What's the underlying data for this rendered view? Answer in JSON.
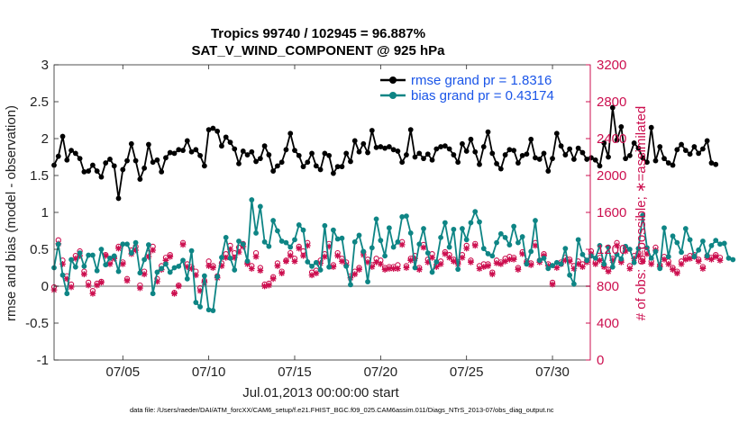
{
  "colors": {
    "rmse": "#000000",
    "bias": "#0e8585",
    "obs": "#cc0f4f",
    "zero_line": "#b4b4b4",
    "legend_text": "#1a55e8",
    "grid": "#e6e6e6"
  },
  "chart_data": {
    "type": "line",
    "title_line1": "Tropics 99740 / 102945 = 96.887%",
    "title_line2": "SAT_V_WIND_COMPONENT @ 925 hPa",
    "xlabel": "Jul.01,2013 00:00:00 start",
    "ylabel_left": "rmse and bias (model - observation)",
    "ylabel_right": "# of obs: o=possible; ∗=assimilated",
    "xlim": [
      1,
      32.2
    ],
    "ylim_left": [
      -1,
      3
    ],
    "ylim_right": [
      0,
      3200
    ],
    "x_ticks": [
      {
        "value": 5,
        "label": "07/05"
      },
      {
        "value": 10,
        "label": "07/10"
      },
      {
        "value": 15,
        "label": "07/15"
      },
      {
        "value": 20,
        "label": "07/20"
      },
      {
        "value": 25,
        "label": "07/25"
      },
      {
        "value": 30,
        "label": "07/30"
      }
    ],
    "left_ticks": [
      {
        "value": 3,
        "label": "3"
      },
      {
        "value": 2.5,
        "label": "2.5"
      },
      {
        "value": 2,
        "label": "2"
      },
      {
        "value": 1.5,
        "label": "1.5"
      },
      {
        "value": 1,
        "label": "1"
      },
      {
        "value": 0.5,
        "label": "0.5"
      },
      {
        "value": 0,
        "label": "0"
      },
      {
        "value": -0.5,
        "label": "-0.5"
      },
      {
        "value": -1,
        "label": "-1"
      }
    ],
    "right_ticks": [
      {
        "value": 3200,
        "label": "3200"
      },
      {
        "value": 2800,
        "label": "2800"
      },
      {
        "value": 2400,
        "label": "2400"
      },
      {
        "value": 2000,
        "label": "2000"
      },
      {
        "value": 1600,
        "label": "1600"
      },
      {
        "value": 1200,
        "label": "1200"
      },
      {
        "value": 800,
        "label": "800"
      },
      {
        "value": 400,
        "label": "400"
      },
      {
        "value": 0,
        "label": "0"
      }
    ],
    "legend": {
      "position": "top-right",
      "rmse_label": "rmse grand pr = 1.8316",
      "bias_label": "bias grand pr = 0.43174"
    },
    "x_start": 1.0,
    "x_step": 0.25,
    "series": [
      {
        "name": "rmse",
        "axis": "left",
        "values": [
          1.64,
          1.76,
          2.03,
          1.71,
          1.84,
          1.8,
          1.73,
          1.55,
          1.56,
          1.64,
          1.56,
          1.48,
          1.67,
          1.72,
          1.63,
          1.19,
          1.58,
          1.7,
          1.93,
          1.7,
          1.45,
          1.6,
          1.92,
          1.68,
          1.71,
          1.55,
          1.74,
          1.81,
          1.8,
          1.85,
          1.84,
          1.97,
          1.82,
          1.85,
          1.77,
          1.63,
          2.12,
          2.14,
          2.1,
          1.9,
          2.02,
          1.95,
          1.86,
          1.66,
          1.83,
          1.78,
          1.82,
          1.69,
          1.73,
          1.9,
          1.78,
          1.56,
          1.63,
          1.68,
          1.85,
          2.07,
          1.84,
          1.77,
          1.62,
          1.68,
          1.8,
          1.63,
          1.58,
          1.8,
          1.77,
          1.53,
          1.62,
          1.62,
          1.8,
          1.69,
          1.97,
          1.82,
          1.93,
          1.81,
          2.11,
          1.88,
          1.89,
          1.87,
          1.89,
          1.85,
          1.83,
          1.68,
          1.78,
          2.12,
          1.75,
          1.8,
          1.73,
          1.79,
          1.71,
          1.86,
          1.89,
          1.9,
          1.86,
          1.78,
          1.68,
          1.93,
          1.83,
          1.99,
          1.82,
          1.65,
          1.89,
          2.09,
          1.8,
          1.66,
          1.59,
          1.78,
          1.85,
          1.84,
          1.67,
          1.77,
          1.79,
          1.99,
          1.74,
          1.72,
          1.8,
          1.56,
          1.73,
          2.07,
          1.9,
          1.78,
          1.86,
          1.72,
          1.87,
          1.81,
          1.72,
          1.74,
          1.71,
          1.63,
          1.94,
          1.75,
          2.42,
          1.98,
          2.16,
          1.73,
          1.77,
          1.94,
          1.87,
          1.74,
          1.68,
          2.15,
          1.7,
          1.89,
          1.73,
          1.67,
          1.64,
          1.85,
          1.92,
          1.84,
          1.79,
          1.89,
          1.8,
          1.86,
          1.97,
          1.67,
          1.65
        ]
      },
      {
        "name": "bias",
        "axis": "left",
        "values": [
          0.25,
          0.57,
          0.15,
          -0.1,
          0.36,
          0.26,
          0.45,
          0.27,
          0.42,
          0.42,
          0.21,
          0.5,
          0.29,
          0.38,
          0.41,
          0.2,
          0.57,
          0.57,
          0.45,
          0.59,
          0.18,
          0.36,
          0.56,
          -0.1,
          0.19,
          0.24,
          0.3,
          0.19,
          0.25,
          0.27,
          0.35,
          0.1,
          0.48,
          -0.22,
          -0.28,
          0.14,
          -0.32,
          -0.33,
          0.13,
          0.39,
          0.66,
          0.38,
          0.22,
          0.61,
          0.57,
          0.34,
          1.17,
          0.72,
          1.08,
          0.6,
          0.54,
          0.89,
          0.75,
          0.61,
          0.59,
          0.53,
          0.63,
          0.83,
          0.76,
          0.33,
          0.27,
          0.32,
          0.22,
          0.82,
          0.26,
          0.76,
          0.64,
          0.65,
          0.27,
          0.02,
          0.6,
          0.69,
          0.47,
          0.06,
          0.52,
          0.91,
          0.62,
          0.41,
          0.79,
          0.53,
          0.6,
          0.94,
          0.95,
          0.72,
          0.25,
          0.57,
          0.78,
          0.45,
          0.19,
          0.33,
          0.66,
          0.86,
          0.53,
          0.77,
          0.23,
          0.78,
          0.63,
          0.86,
          1.01,
          0.87,
          0.51,
          0.44,
          0.41,
          0.59,
          0.71,
          0.66,
          0.56,
          0.81,
          0.59,
          0.67,
          0.3,
          0.47,
          0.89,
          0.35,
          0.38,
          0.24,
          0.28,
          0.32,
          0.3,
          0.51,
          0.15,
          0.03,
          0.63,
          0.43,
          0.35,
          0.41,
          0.38,
          0.55,
          0.3,
          0.53,
          0.26,
          0.43,
          0.37,
          0.54,
          0.5,
          0.32,
          0.51,
          0.96,
          0.52,
          0.38,
          0.47,
          0.24,
          0.79,
          0.4,
          0.68,
          0.59,
          0.46,
          0.78,
          0.63,
          0.4,
          0.49,
          0.61,
          0.41,
          0.55,
          0.62,
          0.57,
          0.58,
          0.38,
          0.36
        ]
      },
      {
        "name": "obs_possible",
        "axis": "right",
        "values": [
          790,
          1300,
          1080,
          910,
          820,
          1130,
          1180,
          960,
          840,
          750,
          830,
          850,
          1140,
          1060,
          1120,
          1230,
          1060,
          880,
          1190,
          1230,
          810,
          960,
          1160,
          1230,
          880,
          1020,
          1110,
          1140,
          730,
          810,
          1270,
          1040,
          1010,
          960,
          780,
          860,
          1070,
          1020,
          910,
          1050,
          1150,
          1240,
          1160,
          1220,
          1260,
          1060,
          1020,
          1160,
          1000,
          820,
          830,
          900,
          1050,
          960,
          1080,
          1160,
          1100,
          1230,
          1180,
          1270,
          950,
          970,
          1080,
          1150,
          1260,
          1030,
          1160,
          1100,
          1060,
          910,
          960,
          1000,
          1170,
          1090,
          1030,
          1100,
          1080,
          1000,
          1010,
          1010,
          1030,
          1280,
          1020,
          1100,
          1130,
          1000,
          1250,
          1090,
          1150,
          1030,
          1070,
          1170,
          1140,
          1090,
          1060,
          1140,
          1240,
          1080,
          1260,
          1020,
          1040,
          1040,
          950,
          1080,
          1060,
          1100,
          1120,
          1110,
          1000,
          1170,
          1070,
          1050,
          1270,
          1080,
          1150,
          1040,
          840,
          1030,
          1060,
          1110,
          1090,
          1020,
          1070,
          1040,
          1080,
          1180,
          1060,
          1110,
          1030,
          980,
          1100,
          1270,
          1080,
          1210,
          1020,
          1130,
          1160,
          1100,
          1180,
          1070,
          1220,
          1030,
          1120,
          1070,
          1000,
          960,
          1070,
          1110,
          1130,
          1140,
          1090,
          1010,
          1130,
          1110,
          1140,
          1110
        ]
      },
      {
        "name": "obs_assimilated",
        "axis": "right",
        "values": [
          760,
          1260,
          1040,
          880,
          790,
          1100,
          1130,
          930,
          810,
          720,
          810,
          840,
          1130,
          1040,
          1100,
          1210,
          1040,
          860,
          1150,
          1190,
          780,
          930,
          1120,
          1190,
          850,
          980,
          1080,
          1120,
          720,
          800,
          1250,
          1010,
          990,
          920,
          750,
          840,
          1020,
          1000,
          890,
          1020,
          1110,
          1200,
          1110,
          1170,
          1230,
          1040,
          990,
          1120,
          970,
          800,
          810,
          880,
          1020,
          940,
          1070,
          1130,
          1070,
          1210,
          1130,
          1240,
          920,
          940,
          1050,
          1120,
          1230,
          1010,
          1130,
          1070,
          1030,
          890,
          930,
          980,
          1140,
          1060,
          1010,
          1060,
          1040,
          980,
          990,
          990,
          990,
          1250,
          1000,
          1080,
          1100,
          980,
          1220,
          1060,
          1110,
          1010,
          1040,
          1150,
          1110,
          1070,
          1040,
          1110,
          1210,
          1060,
          1240,
          990,
          1010,
          1020,
          930,
          1050,
          1040,
          1070,
          1090,
          1090,
          980,
          1150,
          1050,
          1030,
          1240,
          1060,
          1130,
          1020,
          820,
          1000,
          1040,
          1080,
          1070,
          990,
          1040,
          1010,
          1060,
          1150,
          1040,
          1080,
          1010,
          960,
          1080,
          1240,
          1060,
          1180,
          990,
          1100,
          1130,
          1070,
          1150,
          1040,
          1190,
          1010,
          1090,
          1040,
          980,
          940,
          1040,
          1090,
          1100,
          1120,
          1070,
          990,
          1110,
          1090,
          1120,
          1080
        ]
      }
    ]
  },
  "footnote": "data file: /Users/raeder/DAI/ATM_forcXX/CAM6_setup/f.e21.FHIST_BGC.f09_025.CAM6assim.011/Diags_NTrS_2013-07/obs_diag_output.nc"
}
